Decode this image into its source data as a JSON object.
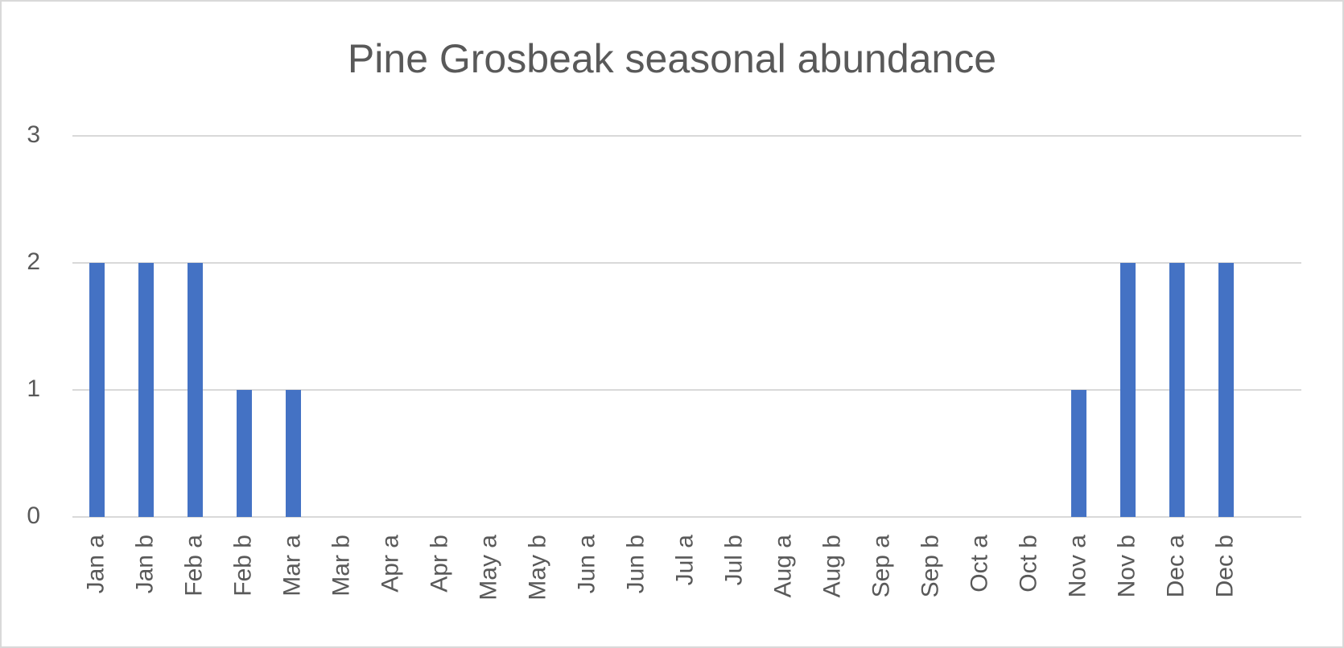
{
  "chart_data": {
    "type": "bar",
    "title": "Pine Grosbeak seasonal abundance",
    "categories": [
      "Jan a",
      "Jan b",
      "Feb a",
      "Feb b",
      "Mar a",
      "Mar b",
      "Apr a",
      "Apr b",
      "May a",
      "May b",
      "Jun a",
      "Jun b",
      "Jul a",
      "Jul b",
      "Aug a",
      "Aug b",
      "Sep a",
      "Sep b",
      "Oct a",
      "Oct b",
      "Nov a",
      "Nov b",
      "Dec a",
      "Dec b"
    ],
    "values": [
      2,
      2,
      2,
      1,
      1,
      0,
      0,
      0,
      0,
      0,
      0,
      0,
      0,
      0,
      0,
      0,
      0,
      0,
      0,
      0,
      1,
      2,
      2,
      2
    ],
    "color": "#4472c4",
    "ylim": [
      0,
      3
    ],
    "yticks": [
      0,
      1,
      2,
      3
    ],
    "grid": true
  }
}
